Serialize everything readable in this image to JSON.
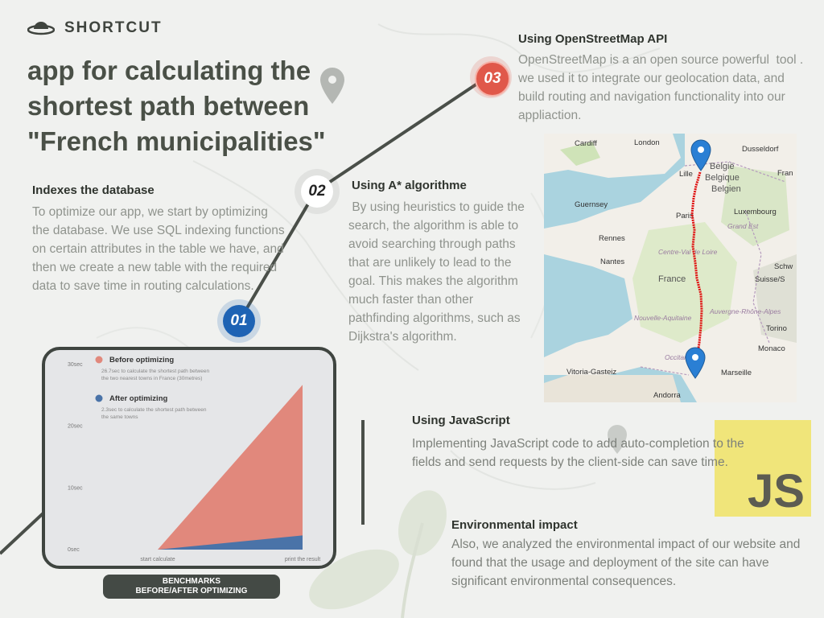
{
  "brand": {
    "name": "SHORTCUT"
  },
  "title": {
    "line1": "app for calculating the",
    "line2": "shortest path between",
    "line3": "\"French municipalities\""
  },
  "steps": {
    "s1": "01",
    "s2": "02",
    "s3": "03"
  },
  "sections": {
    "database": {
      "title": "Indexes the database",
      "body": "To optimize our app, we start by optimizing the database. We use SQL indexing functions on certain attributes in the table we have, and then we create a new table with the required data to save time in routing calculations."
    },
    "astar": {
      "title": "Using A* algorithme",
      "body": " By using heuristics to guide the search, the algorithm is able to avoid searching through paths that are unlikely to lead to the goal. This makes the algorithm much faster than other pathfinding algorithms, such as Dijkstra's algorithm."
    },
    "osm": {
      "title": "Using OpenStreetMap API",
      "body": "OpenStreetMap is a an open source powerful  tool . we used it to integrate our geolocation data, and build routing and navigation functionality into our appliaction."
    },
    "javascript": {
      "title": "Using JavaScript",
      "body": "Implementing JavaScript code to add auto-completion to the fields and send requests by the client-side can save time."
    },
    "environment": {
      "title": "Environmental impact",
      "body": "Also, we analyzed the environmental impact of our website and found that the usage and deployment of the site can have significant environmental consequences."
    }
  },
  "js_logo": "JS",
  "benchmark": {
    "line1": "BENCHMARKS",
    "line2": "BEFORE/AFTER OPTIMIZING"
  },
  "chart_data": {
    "type": "area",
    "x": [
      "start calculate",
      "print the result"
    ],
    "y_ticks": [
      "0sec",
      "10sec",
      "20sec",
      "30sec"
    ],
    "ylim": [
      0,
      30
    ],
    "series": [
      {
        "name": "Before optimizing",
        "description": "26.7sec to calculate the shortest path between the two nearest towns in France (30metres)",
        "values": [
          0,
          26.7
        ],
        "color": "#e1887c"
      },
      {
        "name": "After optimizing",
        "description": "2.3sec to calculate the shortest path between the same towns",
        "values": [
          0,
          2.3
        ],
        "color": "#4a73a8"
      }
    ],
    "legend": "top-left"
  },
  "map": {
    "cities": [
      "Cardiff",
      "London",
      "Dusseldorf",
      "België",
      "Lille",
      "Belgique",
      "Belgien",
      "Fran",
      "Guernsey",
      "Luxembourg",
      "Paris",
      "Grand Est",
      "Rennes",
      "Nantes",
      "Centre-Val de Loire",
      "France",
      "Schw",
      "Suisse/S",
      "Nouvelle-Aquitaine",
      "Auvergne-Rhône-Alpes",
      "Torino",
      "Occitanie",
      "Monaco",
      "Vitoria-Gasteiz",
      "Marseille",
      "Andorra"
    ],
    "route_color": "#e01010",
    "marker_color": "#2a7fd4"
  },
  "colors": {
    "step1": "#1e63b4",
    "step3": "#e0584a",
    "accent_dark": "#4a4f49"
  }
}
